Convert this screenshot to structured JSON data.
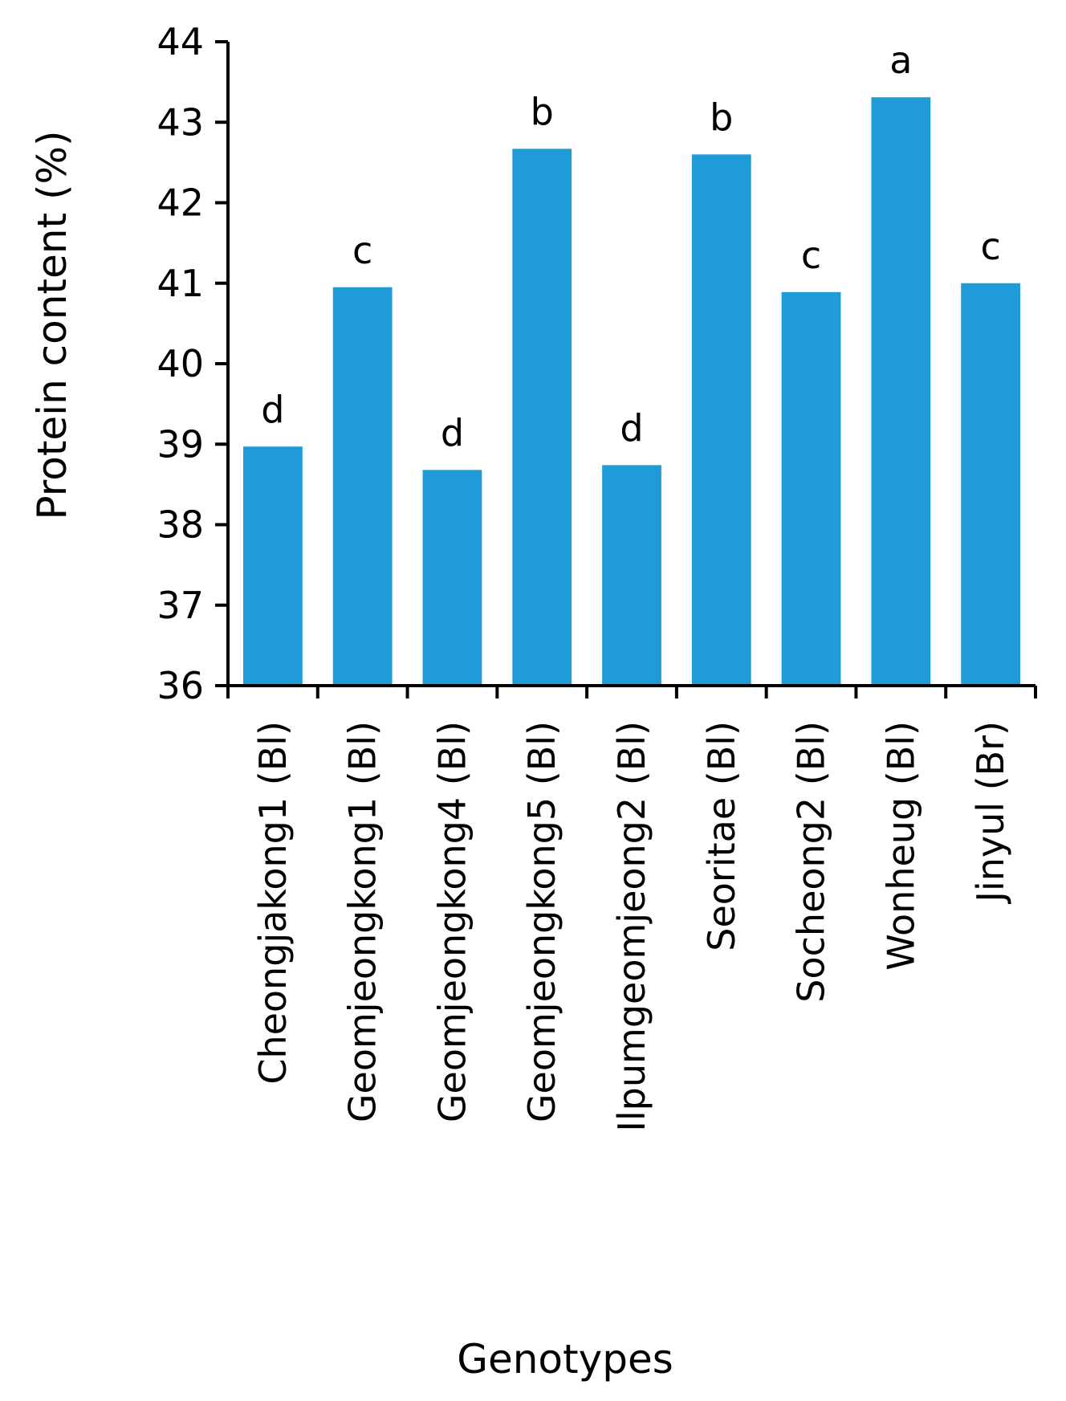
{
  "chart_data": {
    "type": "bar",
    "title": "",
    "xlabel": "Genotypes",
    "ylabel": "Protein content (%)",
    "ylim": [
      36,
      44
    ],
    "yticks": [
      "36",
      "37",
      "38",
      "39",
      "40",
      "41",
      "42",
      "43",
      "44"
    ],
    "grid": false,
    "bar_color": "#1F9BD7",
    "categories": [
      "Cheongjakong1 (Bl)",
      "Geomjeongkong1 (Bl)",
      "Geomjeongkong4 (Bl)",
      "Geomjeongkong5 (Bl)",
      "Ilpumgeomjeong2 (Bl)",
      "Seoritae (Bl)",
      "Socheong2 (Bl)",
      "Wonheug (Bl)",
      "Jinyul (Br)"
    ],
    "values": [
      38.97,
      40.95,
      38.68,
      42.67,
      38.74,
      42.6,
      40.89,
      43.31,
      41.0
    ],
    "significance_letters": [
      "d",
      "c",
      "d",
      "b",
      "d",
      "b",
      "c",
      "a",
      "c"
    ]
  }
}
